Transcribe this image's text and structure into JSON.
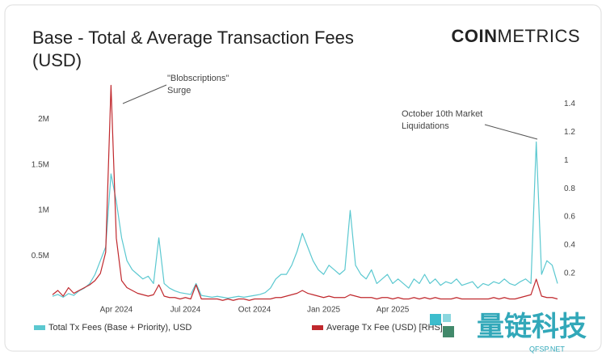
{
  "chart_data": {
    "type": "line",
    "title": [
      "Base - Total & Average Transaction Fees",
      "(USD)"
    ],
    "categories": [
      null,
      null,
      null,
      null,
      null,
      null,
      null,
      null,
      null,
      null,
      null,
      null,
      "Apr 2024",
      null,
      null,
      null,
      null,
      null,
      null,
      null,
      null,
      null,
      null,
      null,
      null,
      "Jul 2024",
      null,
      null,
      null,
      null,
      null,
      null,
      null,
      null,
      null,
      null,
      null,
      null,
      "Oct 2024",
      null,
      null,
      null,
      null,
      null,
      null,
      null,
      null,
      null,
      null,
      null,
      null,
      "Jan 2025",
      null,
      null,
      null,
      null,
      null,
      null,
      null,
      null,
      null,
      null,
      null,
      null,
      "Apr 2025",
      null,
      null,
      null,
      null,
      null,
      null,
      null,
      null,
      null,
      null,
      null,
      null,
      null,
      null,
      null,
      null,
      null,
      null,
      null,
      null,
      null,
      null,
      null,
      null,
      null,
      null,
      null,
      null,
      null,
      null,
      null
    ],
    "series": [
      {
        "name": "Total Tx Fees (Base + Priority), USD",
        "color": "#5bc8d0",
        "axis": "y",
        "values": [
          60000,
          80000,
          50000,
          90000,
          70000,
          120000,
          150000,
          200000,
          300000,
          450000,
          600000,
          1400000,
          1100000,
          700000,
          450000,
          350000,
          300000,
          250000,
          280000,
          200000,
          700000,
          200000,
          150000,
          120000,
          100000,
          90000,
          80000,
          200000,
          70000,
          60000,
          50000,
          60000,
          50000,
          40000,
          50000,
          60000,
          50000,
          60000,
          70000,
          80000,
          100000,
          150000,
          250000,
          300000,
          300000,
          400000,
          550000,
          750000,
          600000,
          450000,
          350000,
          300000,
          400000,
          350000,
          300000,
          350000,
          1000000,
          400000,
          300000,
          250000,
          350000,
          200000,
          250000,
          300000,
          200000,
          250000,
          200000,
          150000,
          250000,
          200000,
          300000,
          200000,
          250000,
          180000,
          220000,
          200000,
          250000,
          180000,
          200000,
          220000,
          150000,
          200000,
          180000,
          220000,
          200000,
          250000,
          200000,
          180000,
          220000,
          250000,
          200000,
          1750000,
          300000,
          450000,
          400000,
          200000
        ]
      },
      {
        "name": "Average Tx Fee (USD) [RHS]",
        "color": "#c0282d",
        "axis": "y2",
        "values": [
          0.05,
          0.08,
          0.04,
          0.1,
          0.06,
          0.08,
          0.1,
          0.12,
          0.15,
          0.2,
          0.35,
          1.53,
          0.45,
          0.15,
          0.1,
          0.08,
          0.06,
          0.05,
          0.04,
          0.05,
          0.12,
          0.04,
          0.03,
          0.03,
          0.02,
          0.03,
          0.02,
          0.12,
          0.02,
          0.02,
          0.02,
          0.02,
          0.01,
          0.02,
          0.01,
          0.02,
          0.02,
          0.01,
          0.02,
          0.02,
          0.02,
          0.02,
          0.03,
          0.03,
          0.04,
          0.05,
          0.06,
          0.08,
          0.06,
          0.05,
          0.04,
          0.03,
          0.04,
          0.03,
          0.03,
          0.03,
          0.05,
          0.04,
          0.03,
          0.03,
          0.03,
          0.02,
          0.03,
          0.03,
          0.02,
          0.03,
          0.02,
          0.02,
          0.03,
          0.02,
          0.03,
          0.02,
          0.03,
          0.02,
          0.02,
          0.02,
          0.03,
          0.02,
          0.02,
          0.02,
          0.02,
          0.02,
          0.02,
          0.03,
          0.02,
          0.03,
          0.02,
          0.02,
          0.03,
          0.04,
          0.05,
          0.16,
          0.04,
          0.03,
          0.03,
          0.02
        ]
      }
    ],
    "ylim": [
      0,
      2400000
    ],
    "yticks": [
      {
        "value": 500000,
        "label": "0.5M"
      },
      {
        "value": 1000000,
        "label": "1M"
      },
      {
        "value": 1500000,
        "label": "1.5M"
      },
      {
        "value": 2000000,
        "label": "2M"
      }
    ],
    "y2lim": [
      0,
      1.55
    ],
    "y2ticks": [
      0.2,
      0.4,
      0.6,
      0.8,
      1,
      1.2,
      1.4
    ],
    "grid": false,
    "annotations": [
      {
        "lines": [
          "\"Blobscriptions\"",
          "Surge"
        ]
      },
      {
        "lines": [
          "October 10th Market",
          "Liquidations"
        ]
      }
    ]
  },
  "logo": [
    "COIN",
    "METRICS"
  ],
  "watermark": [
    "量链科技",
    "QFSP.NET"
  ]
}
